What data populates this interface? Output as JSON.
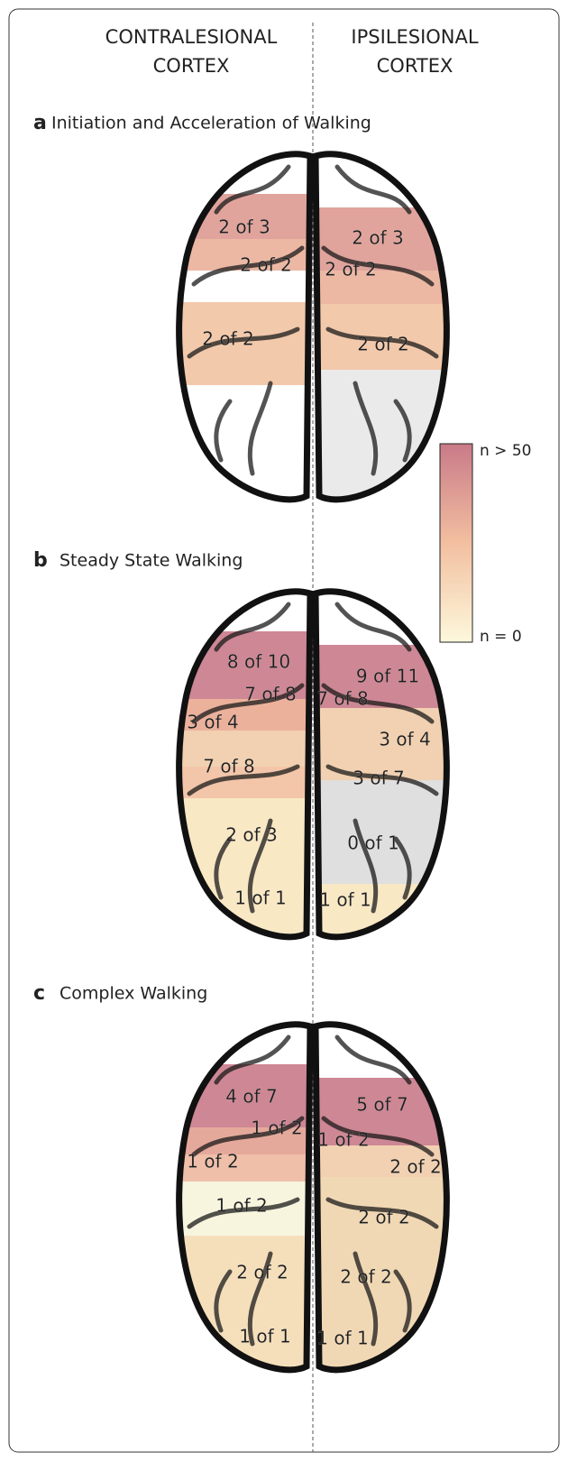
{
  "columns": [
    [
      "CONTRALESIONAL",
      "CORTEX"
    ],
    [
      "IPSILESIONAL",
      "CORTEX"
    ]
  ],
  "panels": [
    {
      "letter": "a",
      "title": "Initiation and Acceleration of Walking",
      "left": [
        "2 of 3",
        "2 of 2",
        "2 of 2"
      ],
      "right": [
        "2 of 3",
        "2 of 2",
        "2 of 2"
      ]
    },
    {
      "letter": "b",
      "title": "Steady State Walking",
      "left": [
        "8 of 10",
        "7 of 8",
        "3 of 4",
        "7 of 8",
        "2 of 3",
        "1 of 1"
      ],
      "right": [
        "9 of 11",
        "7 of 8",
        "3 of 4",
        "3 of 7",
        "0 of 1",
        "1 of 1"
      ]
    },
    {
      "letter": "c",
      "title": "Complex Walking",
      "left": [
        "4 of 7",
        "1 of 2",
        "1 of 2",
        "1 of 2",
        "2 of 2",
        "1 of 1"
      ],
      "right": [
        "5 of 7",
        "1 of 2",
        "2 of 2",
        "2 of 2",
        "2 of 2",
        "1 of 1"
      ]
    }
  ],
  "legend": {
    "max_label": "n > 50",
    "min_label": "n = 0"
  }
}
